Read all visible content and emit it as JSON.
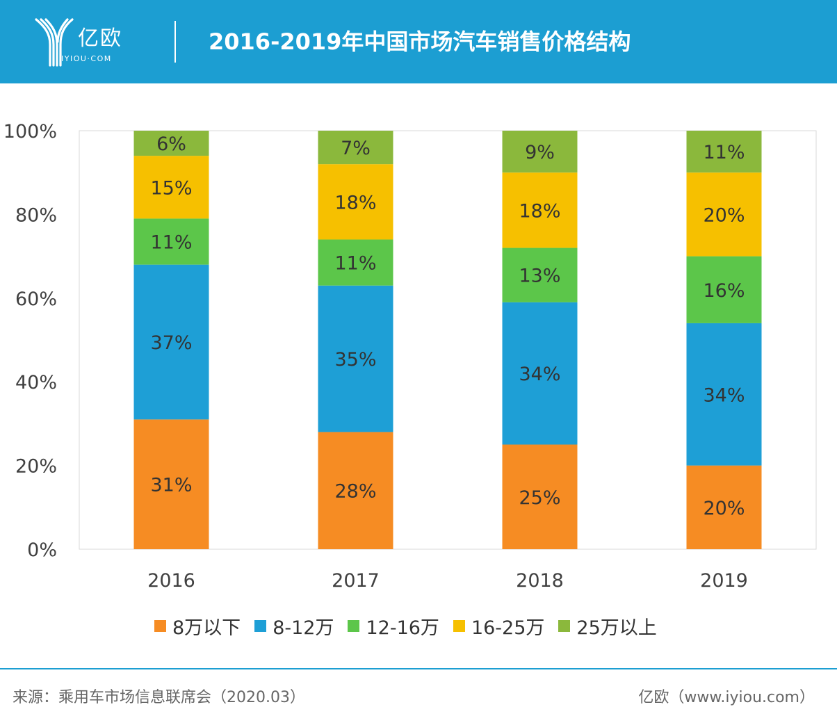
{
  "header": {
    "brand_name": "亿欧",
    "brand_sub": "IYIOU·COM",
    "title": "2016-2019年中国市场汽车销售价格结构"
  },
  "colors": {
    "header_bg": "#1c9ed2",
    "series": [
      "#f68c23",
      "#1e9fd6",
      "#5cc64a",
      "#f6c000",
      "#8bb83c"
    ]
  },
  "chart_data": {
    "type": "bar",
    "stacked": true,
    "percent": true,
    "categories": [
      "2016",
      "2017",
      "2018",
      "2019"
    ],
    "series": [
      {
        "name": "8万以下",
        "values": [
          31,
          28,
          25,
          20
        ],
        "labels": [
          "31%",
          "28%",
          "25%",
          "20%"
        ]
      },
      {
        "name": "8-12万",
        "values": [
          37,
          35,
          34,
          34
        ],
        "labels": [
          "37%",
          "35%",
          "34%",
          "34%"
        ]
      },
      {
        "name": "12-16万",
        "values": [
          11,
          11,
          13,
          16
        ],
        "labels": [
          "11%",
          "11%",
          "13%",
          "16%"
        ]
      },
      {
        "name": "16-25万",
        "values": [
          15,
          18,
          18,
          20
        ],
        "labels": [
          "15%",
          "18%",
          "18%",
          "20%"
        ]
      },
      {
        "name": "25万以上",
        "values": [
          6,
          7,
          9,
          11
        ],
        "labels": [
          "6%",
          "7%",
          "9%",
          "11%"
        ]
      }
    ],
    "ylim": [
      0,
      100
    ],
    "yticks": [
      "0%",
      "20%",
      "40%",
      "60%",
      "80%",
      "100%"
    ],
    "grid": false,
    "legend": "bottom"
  },
  "footer": {
    "source": "来源：乘用车市场信息联席会（2020.03）",
    "credit": "亿欧（www.iyiou.com）"
  }
}
